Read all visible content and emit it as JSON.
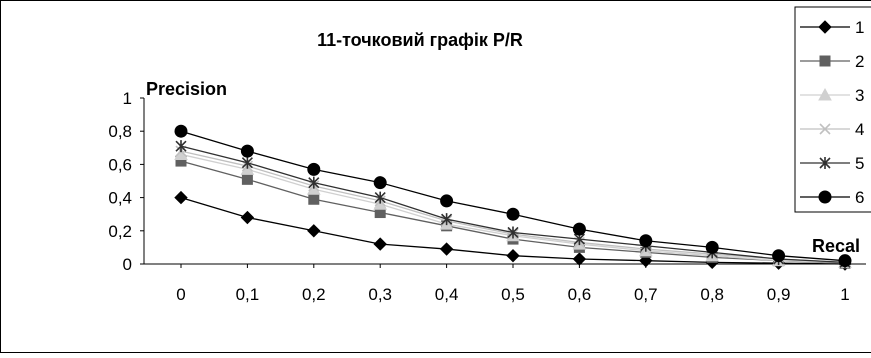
{
  "chart_data": {
    "type": "line",
    "title": "11-точковий графік P/R",
    "ylabel": "Precision",
    "xlabel": "Recal",
    "x": [
      0,
      0.1,
      0.2,
      0.3,
      0.4,
      0.5,
      0.6,
      0.7,
      0.8,
      0.9,
      1
    ],
    "x_tick_labels": [
      "0",
      "0,1",
      "0,2",
      "0,3",
      "0,4",
      "0,5",
      "0,6",
      "0,7",
      "0,8",
      "0,9",
      "1"
    ],
    "y_ticks": [
      0,
      0.2,
      0.4,
      0.6,
      0.8,
      1
    ],
    "y_tick_labels": [
      "0",
      "0,2",
      "0,4",
      "0,6",
      "0,8",
      "1"
    ],
    "ylim": [
      0,
      1
    ],
    "grid": false,
    "legend_position": "top-right",
    "series": [
      {
        "name": "1",
        "marker": "diamond",
        "color": "#000000",
        "values": [
          0.4,
          0.28,
          0.2,
          0.12,
          0.09,
          0.05,
          0.03,
          0.02,
          0.01,
          0.005,
          0.0
        ]
      },
      {
        "name": "2",
        "marker": "square",
        "color": "#606060",
        "values": [
          0.62,
          0.51,
          0.39,
          0.31,
          0.23,
          0.15,
          0.1,
          0.07,
          0.04,
          0.02,
          0.005
        ]
      },
      {
        "name": "3",
        "marker": "triangle",
        "color": "#d0d0d0",
        "values": [
          0.66,
          0.57,
          0.45,
          0.36,
          0.24,
          0.17,
          0.12,
          0.08,
          0.05,
          0.02,
          0.01
        ]
      },
      {
        "name": "4",
        "marker": "x",
        "color": "#c0c0c0",
        "values": [
          0.68,
          0.59,
          0.47,
          0.38,
          0.26,
          0.18,
          0.13,
          0.09,
          0.06,
          0.03,
          0.01
        ]
      },
      {
        "name": "5",
        "marker": "star",
        "color": "#303030",
        "values": [
          0.71,
          0.61,
          0.49,
          0.4,
          0.27,
          0.19,
          0.15,
          0.11,
          0.07,
          0.03,
          0.01
        ]
      },
      {
        "name": "6",
        "marker": "circle",
        "color": "#000000",
        "values": [
          0.8,
          0.68,
          0.57,
          0.49,
          0.38,
          0.3,
          0.21,
          0.14,
          0.1,
          0.05,
          0.02
        ]
      }
    ]
  }
}
